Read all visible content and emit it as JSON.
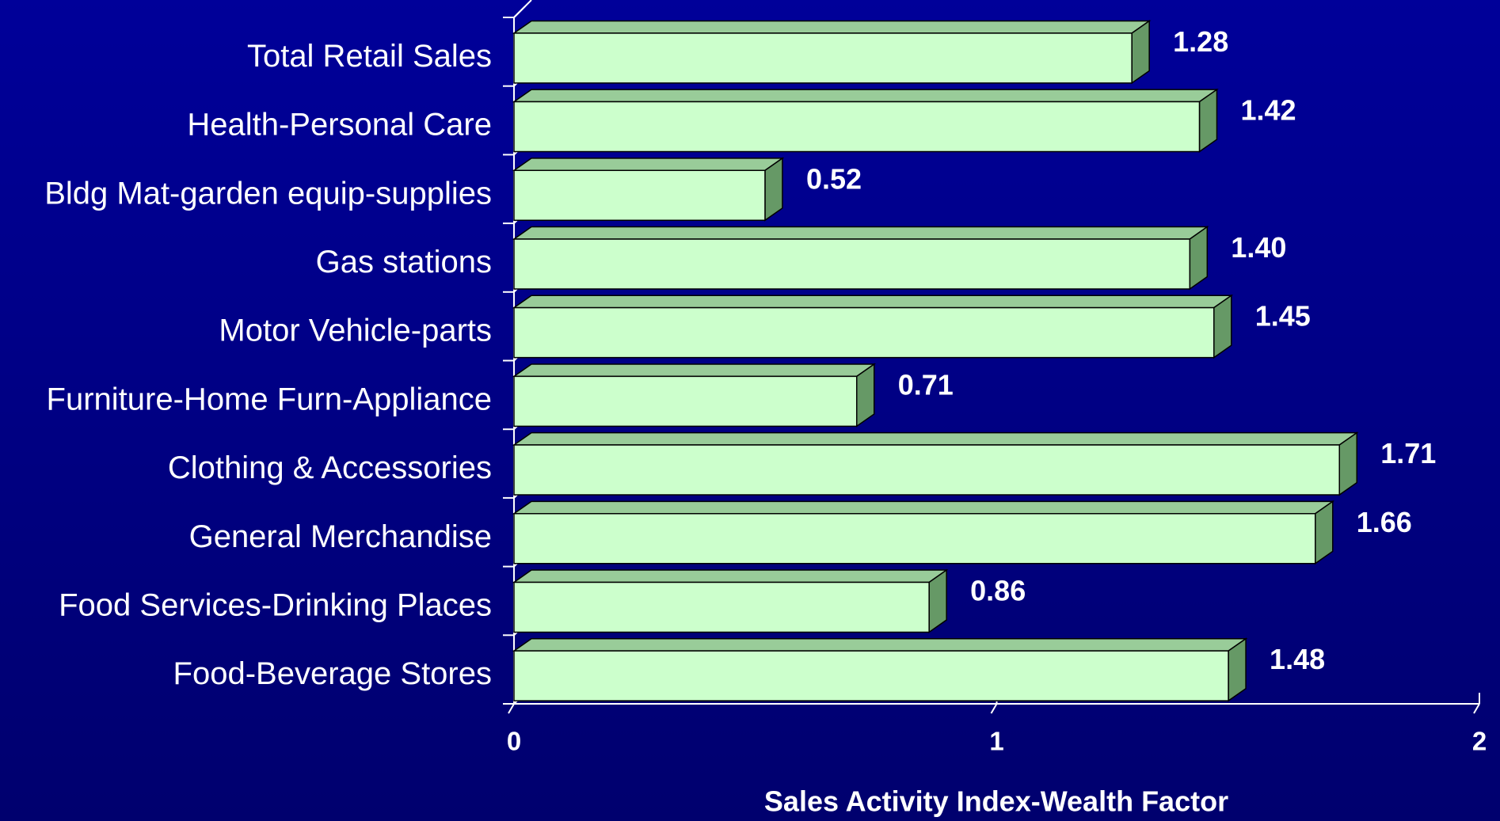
{
  "chart_data": {
    "type": "bar3d_horizontal",
    "categories": [
      "Total Retail Sales",
      "Health-Personal Care",
      "Bldg Mat-garden equip-supplies",
      "Gas stations",
      "Motor Vehicle-parts",
      "Furniture-Home Furn-Appliance",
      "Clothing & Accessories",
      "General Merchandise",
      "Food Services-Drinking Places",
      "Food-Beverage Stores"
    ],
    "values": [
      1.28,
      1.42,
      0.52,
      1.4,
      1.45,
      0.71,
      1.71,
      1.66,
      0.86,
      1.48
    ],
    "value_labels": [
      "1.28",
      "1.42",
      "0.52",
      "1.40",
      "1.45",
      "0.71",
      "1.71",
      "1.66",
      "0.86",
      "1.48"
    ],
    "xlabel": "Sales Activity Index-Wealth Factor",
    "xlim": [
      0,
      2
    ],
    "xticks": [
      0,
      1,
      2
    ],
    "color": "#ccffcc"
  }
}
